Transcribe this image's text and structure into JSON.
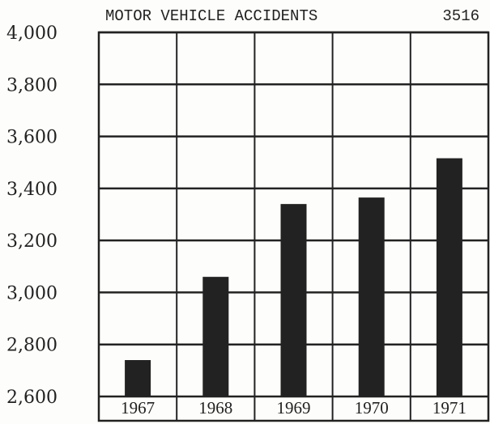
{
  "chart_data": {
    "type": "bar",
    "title": "MOTOR VEHICLE ACCIDENTS",
    "annotation": "3516",
    "categories": [
      "1967",
      "1968",
      "1969",
      "1970",
      "1971"
    ],
    "values": [
      2740,
      3060,
      3340,
      3365,
      3516
    ],
    "color": "#222222",
    "ylim": [
      2600,
      4000
    ],
    "yticks": [
      {
        "value": 2600,
        "label": "2,600"
      },
      {
        "value": 2800,
        "label": "2,800"
      },
      {
        "value": 3000,
        "label": "3,000"
      },
      {
        "value": 3200,
        "label": "3,200"
      },
      {
        "value": 3400,
        "label": "3,400"
      },
      {
        "value": 3600,
        "label": "3,600"
      },
      {
        "value": 3800,
        "label": "3,800"
      },
      {
        "value": 4000,
        "label": "4,000"
      }
    ],
    "grid": true
  }
}
